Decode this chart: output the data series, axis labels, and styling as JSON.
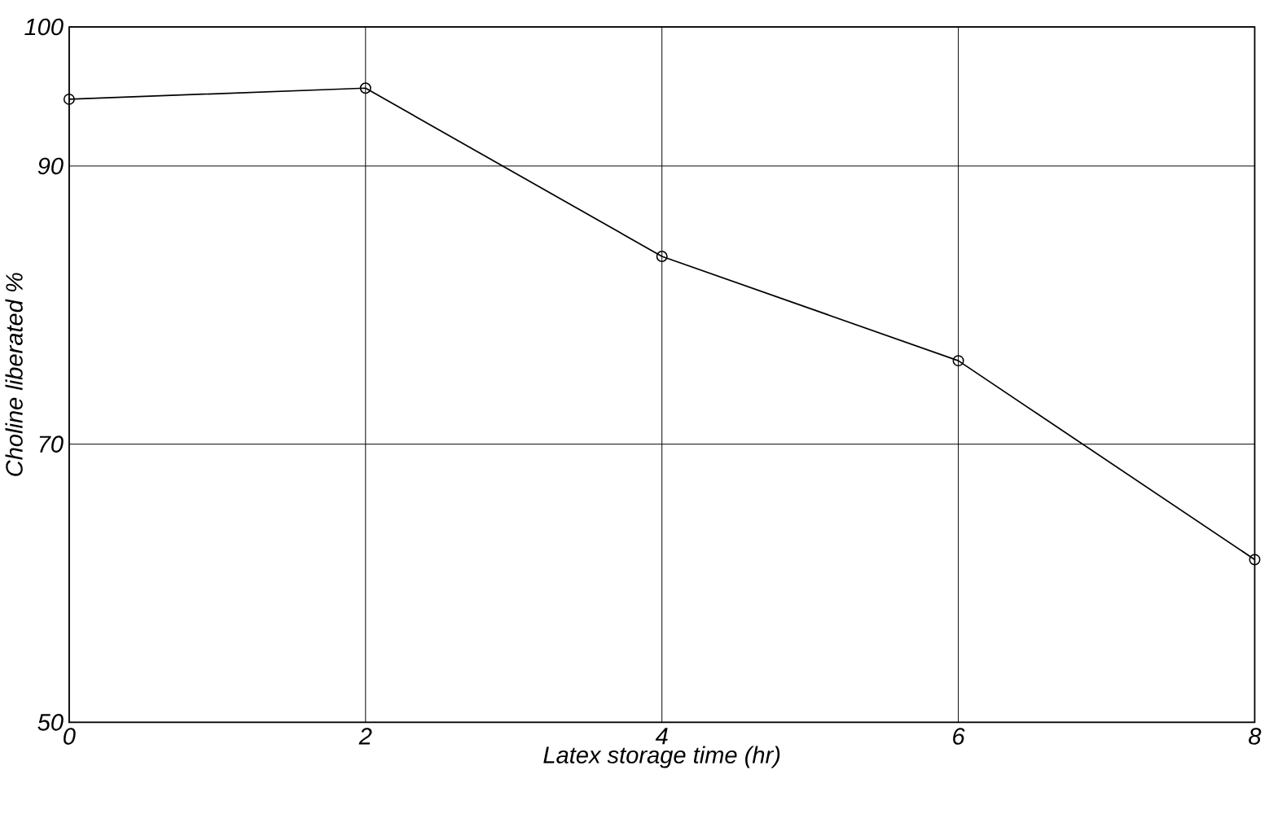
{
  "chart_data": {
    "type": "line",
    "xlabel": "Latex storage time (hr)",
    "ylabel": "Choline liberated %",
    "x": [
      0,
      2,
      4,
      6,
      8
    ],
    "series": [
      {
        "color": "#000000",
        "values": [
          94.8,
          95.6,
          83.5,
          76,
          61.7
        ]
      }
    ],
    "xlim": [
      0,
      8
    ],
    "ylim": [
      50,
      100
    ],
    "xticks": [
      0,
      2,
      4,
      6,
      8
    ],
    "yticks": [
      50,
      70,
      90,
      100
    ],
    "grid": true,
    "marker": "circle",
    "line_style": "solid"
  }
}
